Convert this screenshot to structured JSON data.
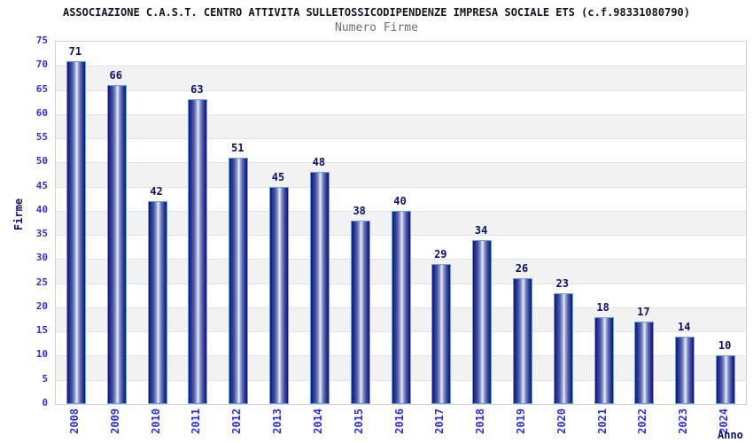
{
  "chart_data": {
    "type": "bar",
    "title": "ASSOCIAZIONE C.A.S.T. CENTRO ATTIVITA SULLETOSSICODIPENDENZE IMPRESA SOCIALE ETS (c.f.98331080790)",
    "subtitle": "Numero Firme",
    "xlabel": "Anno",
    "ylabel": "Firme",
    "categories": [
      "2008",
      "2009",
      "2010",
      "2011",
      "2012",
      "2013",
      "2014",
      "2015",
      "2016",
      "2017",
      "2018",
      "2019",
      "2020",
      "2021",
      "2022",
      "2023",
      "2024"
    ],
    "values": [
      71,
      66,
      42,
      63,
      51,
      45,
      48,
      38,
      40,
      29,
      34,
      26,
      23,
      18,
      17,
      14,
      10
    ],
    "ylim": [
      0,
      75
    ],
    "ytick_step": 5,
    "grid": "horizontal-bands",
    "legend_position": "none",
    "bar_labels_shown": true,
    "colors": {
      "bar_edge_dark": "#10197a",
      "bar_center_light": "#eef1f9",
      "bar_outline": "#6d9fdf",
      "value_label": "#10106a",
      "axis_tick_label": "#3232cd",
      "axis_title": "#10106a",
      "title_text": "#141421",
      "subtitle_text": "#6e6e6e",
      "band_gray": "#f2f2f2",
      "band_white": "#ffffff",
      "grid_line": "#e3e3e3",
      "plot_border": "#d2d2d2"
    }
  }
}
